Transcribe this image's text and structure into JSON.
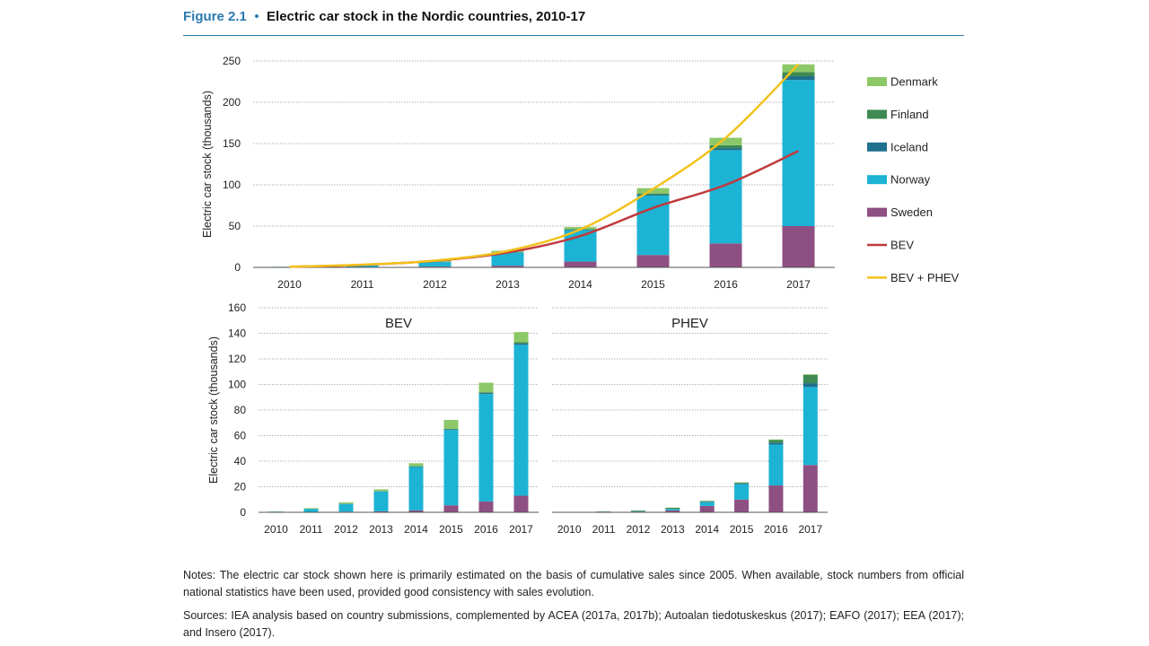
{
  "figure": {
    "number": "Figure 2.1",
    "bullet": "•",
    "title": "Electric car stock in the Nordic countries, 2010-17"
  },
  "notes": "Notes: The electric car stock shown here is primarily estimated on the basis of cumulative sales since 2005. When available, stock numbers from official national statistics have been used, provided good consistency with sales evolution.",
  "sources": "Sources: IEA analysis based on country submissions, complemented by ACEA (2017a, 2017b); Autoalan tiedotuskeskus (2017); EAFO (2017); EEA (2017); and Insero (2017).",
  "colors": {
    "Denmark": "#8dc868",
    "Finland": "#3e8a52",
    "Iceland": "#1f6f8e",
    "Norway": "#1cb3d4",
    "Sweden": "#8e4f82",
    "BEV": "#c0393b",
    "BEV + PHEV": "#f2c21b",
    "grid": "#9a9a9a",
    "axis": "#555555"
  },
  "chart_data": [
    {
      "type": "bar",
      "stacked": true,
      "categories": [
        "2010",
        "2011",
        "2012",
        "2013",
        "2014",
        "2015",
        "2016",
        "2017"
      ],
      "ylabel": "Electric car stock (thousands)",
      "ylim": [
        0,
        250
      ],
      "yticks": [
        0,
        50,
        100,
        150,
        200,
        250
      ],
      "grid": true,
      "legend_position": "right",
      "series": [
        {
          "name": "Sweden",
          "values": [
            0.2,
            0.5,
            1.0,
            2.0,
            7.0,
            15.0,
            29.0,
            50.0
          ]
        },
        {
          "name": "Norway",
          "values": [
            0.5,
            2.0,
            5.5,
            16.0,
            38.0,
            72.0,
            113.0,
            177.0
          ]
        },
        {
          "name": "Iceland",
          "values": [
            0.0,
            0.0,
            0.1,
            0.2,
            0.6,
            1.0,
            2.5,
            4.5
          ]
        },
        {
          "name": "Finland",
          "values": [
            0.0,
            0.1,
            0.2,
            0.4,
            0.8,
            1.5,
            3.5,
            5.0
          ]
        },
        {
          "name": "Denmark",
          "values": [
            0.1,
            0.7,
            1.4,
            1.5,
            2.4,
            6.5,
            9.0,
            9.5
          ]
        }
      ],
      "lines": [
        {
          "name": "BEV",
          "values": [
            0.7,
            3.0,
            8.0,
            18.0,
            38.0,
            72.0,
            100.0,
            141.0
          ]
        },
        {
          "name": "BEV + PHEV",
          "values": [
            0.8,
            3.3,
            8.2,
            20.0,
            46.0,
            95.0,
            157.0,
            246.0
          ]
        }
      ]
    },
    {
      "type": "bar",
      "stacked": true,
      "title": "BEV",
      "categories": [
        "2010",
        "2011",
        "2012",
        "2013",
        "2014",
        "2015",
        "2016",
        "2017"
      ],
      "ylabel": "Electric car stock (thousands)",
      "ylim": [
        0,
        160
      ],
      "yticks": [
        0,
        20,
        40,
        60,
        80,
        100,
        120,
        140,
        160
      ],
      "grid": true,
      "series": [
        {
          "name": "Sweden",
          "values": [
            0.1,
            0.2,
            0.5,
            0.8,
            1.5,
            5.5,
            8.5,
            13.0
          ]
        },
        {
          "name": "Norway",
          "values": [
            0.5,
            2.5,
            6.0,
            15.5,
            34.0,
            59.0,
            84.0,
            118.0
          ]
        },
        {
          "name": "Iceland",
          "values": [
            0.0,
            0.0,
            0.1,
            0.2,
            0.4,
            0.5,
            0.8,
            1.0
          ]
        },
        {
          "name": "Finland",
          "values": [
            0.0,
            0.0,
            0.1,
            0.1,
            0.2,
            0.3,
            0.6,
            1.0
          ]
        },
        {
          "name": "Denmark",
          "values": [
            0.1,
            0.6,
            1.1,
            1.4,
            2.3,
            7.0,
            7.5,
            8.0
          ]
        }
      ]
    },
    {
      "type": "bar",
      "stacked": true,
      "title": "PHEV",
      "categories": [
        "2010",
        "2011",
        "2012",
        "2013",
        "2014",
        "2015",
        "2016",
        "2017"
      ],
      "ylim": [
        0,
        160
      ],
      "grid": true,
      "series": [
        {
          "name": "Sweden",
          "values": [
            0.1,
            0.3,
            0.5,
            1.5,
            5.0,
            10.0,
            21.0,
            37.0
          ]
        },
        {
          "name": "Norway",
          "values": [
            0.0,
            0.1,
            0.3,
            1.0,
            3.0,
            12.0,
            32.0,
            61.0
          ]
        },
        {
          "name": "Iceland",
          "values": [
            0.0,
            0.0,
            0.1,
            0.2,
            0.3,
            0.5,
            1.5,
            3.0
          ]
        },
        {
          "name": "Finland",
          "values": [
            0.1,
            0.3,
            0.5,
            0.8,
            0.5,
            0.6,
            2.0,
            6.5
          ]
        },
        {
          "name": "Denmark",
          "values": [
            0.0,
            0.0,
            0.1,
            0.2,
            0.2,
            0.4,
            0.5,
            0.5
          ]
        }
      ]
    }
  ]
}
